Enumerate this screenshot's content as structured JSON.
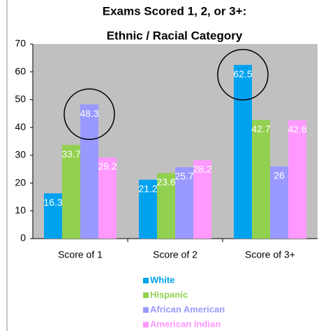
{
  "chart_data": {
    "type": "bar",
    "title": "Exams Scored 1, 2, or 3+:",
    "subtitle": "Ethnic / Racial Category",
    "categories": [
      "Score of 1",
      "Score of 2",
      "Score of 3+"
    ],
    "series": [
      {
        "name": "White",
        "color": "#00a2f0",
        "values": [
          16.3,
          21.2,
          62.5
        ]
      },
      {
        "name": "Hispanic",
        "color": "#92d050",
        "values": [
          33.7,
          23.6,
          42.7
        ]
      },
      {
        "name": "African American",
        "color": "#9999ff",
        "values": [
          48.3,
          25.7,
          26
        ]
      },
      {
        "name": "American Indian",
        "color": "#ff99ff",
        "values": [
          29.2,
          28.2,
          42.6
        ]
      }
    ],
    "ylim": [
      0,
      70
    ],
    "yticks": [
      0,
      10,
      20,
      30,
      40,
      50,
      60,
      70
    ]
  }
}
